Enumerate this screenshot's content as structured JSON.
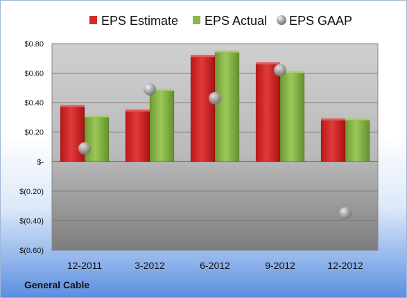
{
  "company": "General Cable",
  "chart_data": {
    "type": "bar",
    "categories": [
      "12-2011",
      "3-2012",
      "6-2012",
      "9-2012",
      "12-2012"
    ],
    "series": [
      {
        "name": "EPS Estimate",
        "kind": "bar",
        "color": "#d42a2a",
        "values": [
          0.37,
          0.34,
          0.71,
          0.66,
          0.28
        ]
      },
      {
        "name": "EPS Actual",
        "kind": "bar",
        "color": "#8cb84a",
        "values": [
          0.3,
          0.48,
          0.74,
          0.6,
          0.28
        ]
      },
      {
        "name": "EPS GAAP",
        "kind": "scatter",
        "color": "#a9a9a9",
        "values": [
          0.09,
          0.49,
          0.43,
          0.62,
          -0.35
        ]
      }
    ],
    "ylim": [
      -0.6,
      0.8
    ],
    "yticks": [
      -0.6,
      -0.4,
      -0.2,
      0,
      0.2,
      0.4,
      0.6,
      0.8
    ],
    "ytick_labels": [
      "$(0.60)",
      "$(0.40)",
      "$(0.20)",
      "$-",
      "$0.20",
      "$0.40",
      "$0.60",
      "$0.80"
    ],
    "grid": true,
    "legend_position": "top"
  }
}
